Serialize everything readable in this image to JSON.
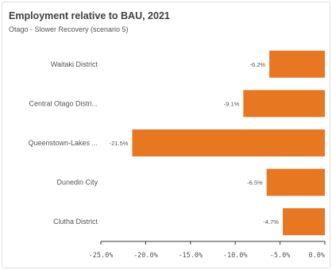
{
  "header": {
    "title": "Employment relative to BAU, 2021",
    "subtitle": "Otago - Slower Recovery (scenario 5)"
  },
  "colors": {
    "bar": "#e87722",
    "axis": "#333333",
    "grid": "#e6e6e6",
    "label_bg": "#ffffff"
  },
  "chart_data": {
    "type": "bar",
    "orientation": "horizontal",
    "title": "Employment relative to BAU, 2021",
    "subtitle": "Otago - Slower Recovery (scenario 5)",
    "categories": [
      "Waitaki District",
      "Central Otago Distri...",
      "Queenstown-Lakes ...",
      "Dunedin City",
      "Clutha District"
    ],
    "values": [
      -6.2,
      -9.1,
      -21.5,
      -6.5,
      -4.7
    ],
    "value_labels": [
      "-6.2%",
      "-9.1%",
      "-21.5%",
      "-6.5%",
      "-4.7%"
    ],
    "xlim": [
      -25,
      0
    ],
    "xticks": [
      -25,
      -20,
      -15,
      -10,
      -5,
      0
    ],
    "xtick_labels": [
      "-25.0%",
      "-20.0%",
      "-15.0%",
      "-10.0%",
      "-5.0%",
      "0.0%"
    ],
    "grid": false,
    "legend": "none"
  }
}
